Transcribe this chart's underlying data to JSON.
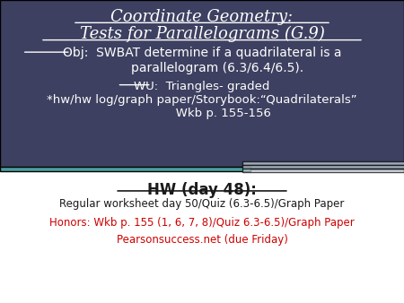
{
  "title_line1": "Coordinate Geometry:",
  "title_line2": "Tests for Parallelograms (G.9)",
  "top_bg_color": "#3d4060",
  "bottom_bg_color": "#ffffff",
  "title_color": "#ffffff",
  "obj_text": "Obj:  SWBAT determine if a quadrilateral is a\n        parallelogram (6.3/6.4/6.5).",
  "wu_text": "WU:  Triangles- graded\n*hw/hw log/graph paper/Storybook:“Quadrilaterals”\n           Wkb p. 155-156",
  "hw_title": "HW (day 48):",
  "hw_regular": "Regular worksheet day 50/Quiz (6.3-6.5)/Graph Paper",
  "hw_honors": "Honors: Wkb p. 155 (1, 6, 7, 8)/Quiz 6.3-6.5)/Graph Paper",
  "hw_pearson": "Pearsonsuccess.net (due Friday)",
  "black_color": "#1a1a1a",
  "red_color": "#cc0000",
  "teal_stripe_color": "#4a9e9e",
  "light_stripe_color": "#c8d8e0"
}
